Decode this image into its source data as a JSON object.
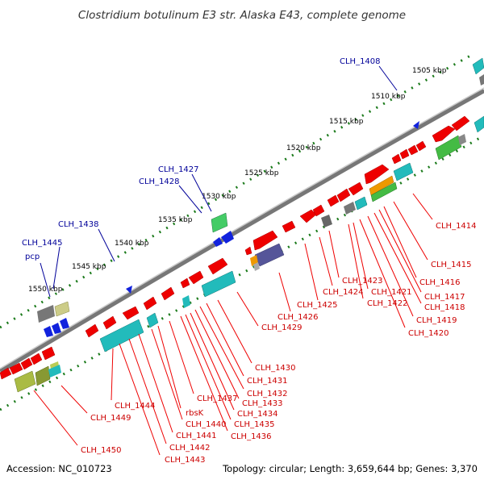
{
  "title": "Clostridium botulinum E3 str. Alaska E43, complete genome",
  "footer": {
    "accession": "Accession: NC_010723",
    "stats": "Topology: circular; Length: 3,659,644 bp; Genes: 3,370"
  },
  "kbp_labels": [
    {
      "text": "1505 kbp",
      "kbp": 1505
    },
    {
      "text": "1510 kbp",
      "kbp": 1510
    },
    {
      "text": "1515 kbp",
      "kbp": 1515
    },
    {
      "text": "1520 kbp",
      "kbp": 1520
    },
    {
      "text": "1525 kbp",
      "kbp": 1525
    },
    {
      "text": "1530 kbp",
      "kbp": 1530
    },
    {
      "text": "1535 kbp",
      "kbp": 1535
    },
    {
      "text": "1540 kbp",
      "kbp": 1540
    },
    {
      "text": "1545 kbp",
      "kbp": 1545
    },
    {
      "text": "1550 kbp",
      "kbp": 1550
    }
  ],
  "outer_labels": [
    "CLH_1408",
    "CLH_1427",
    "CLH_1428",
    "CLH_1438",
    "CLH_1445",
    "pcp"
  ],
  "inner_labels": [
    "CLH_1414",
    "CLH_1415",
    "CLH_1416",
    "CLH_1417",
    "CLH_1418",
    "CLH_1419",
    "CLH_1420",
    "CLH_1421",
    "CLH_1422",
    "CLH_1423",
    "CLH_1424",
    "CLH_1425",
    "CLH_1426",
    "CLH_1429",
    "CLH_1430",
    "CLH_1431",
    "CLH_1432",
    "CLH_1433",
    "CLH_1434",
    "CLH_1435",
    "CLH_1436",
    "CLH_1437",
    "rbsK",
    "CLH_1440",
    "CLH_1441",
    "CLH_1442",
    "CLH_1443",
    "CLH_1444",
    "CLH_1449",
    "CLH_1450"
  ],
  "colors": {
    "cds": "#ee0000",
    "backbone": "#888888",
    "tick": "#1a7a1a",
    "blue_label": "#000099",
    "red_label": "#cc0000",
    "teal": "#22bbbb",
    "green": "#44bb44",
    "gray": "#777777",
    "olive": "#889933",
    "purple": "#555599",
    "blue_gene": "#1122dd"
  }
}
